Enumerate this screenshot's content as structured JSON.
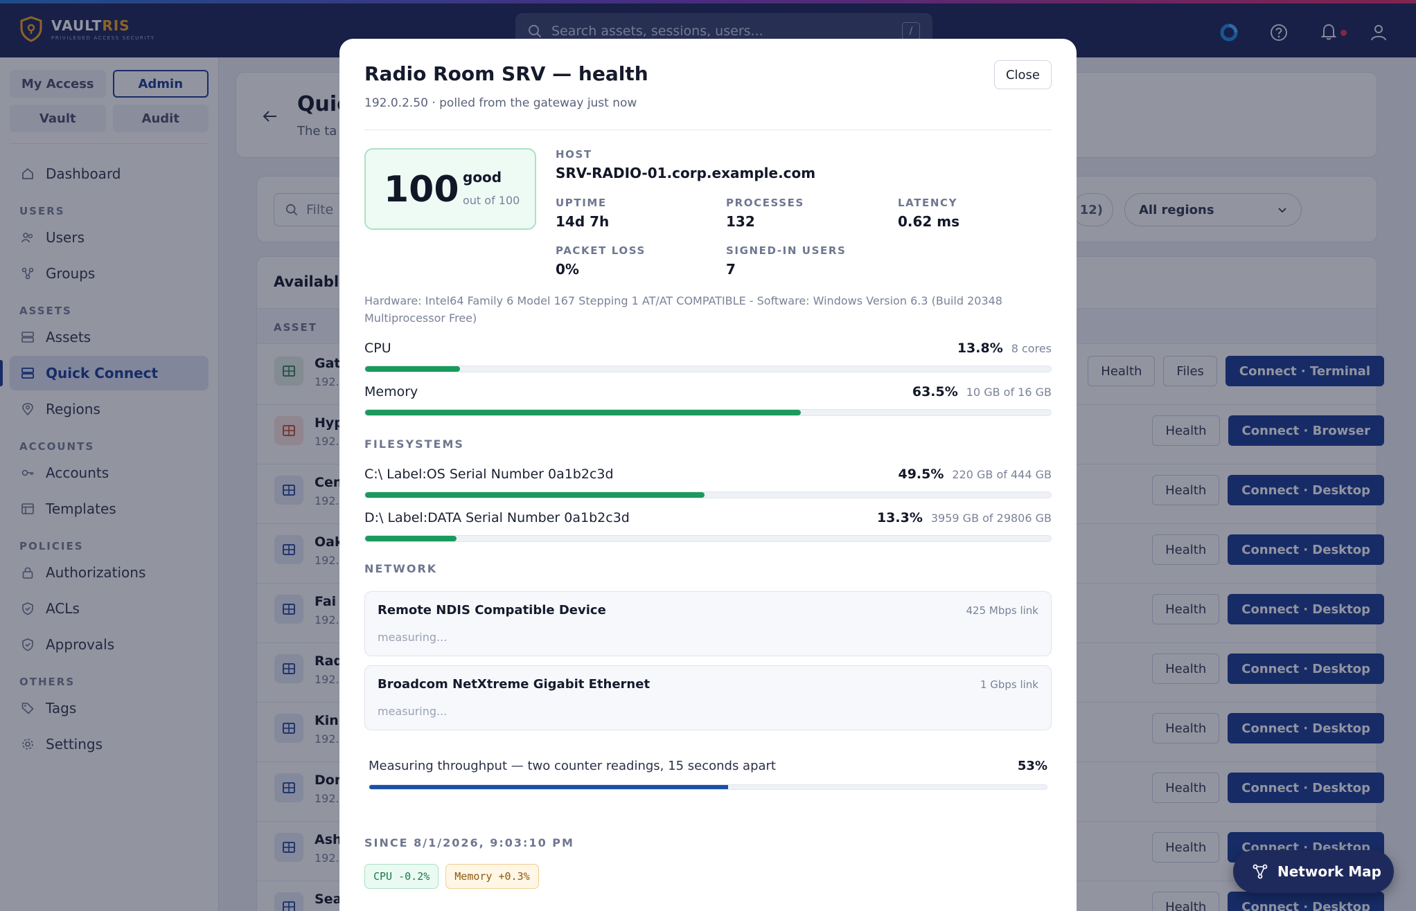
{
  "brand": {
    "name_a": "VAULT",
    "name_b": "RIS",
    "tagline": "PRIVILEGED ACCESS SECURITY"
  },
  "search": {
    "placeholder": "Search assets, sessions, users...",
    "shortcut": "/"
  },
  "sidebar": {
    "tabs": [
      {
        "label": "My Access",
        "active": false
      },
      {
        "label": "Admin",
        "active": true
      },
      {
        "label": "Vault",
        "active": false
      },
      {
        "label": "Audit",
        "active": false
      }
    ],
    "dashboard": "Dashboard",
    "sections": {
      "users": "USERS",
      "assets": "ASSETS",
      "accounts": "ACCOUNTS",
      "policies": "POLICIES",
      "others": "OTHERS"
    },
    "items": {
      "users": "Users",
      "groups": "Groups",
      "assets": "Assets",
      "quick_connect": "Quick Connect",
      "regions": "Regions",
      "accounts": "Accounts",
      "templates": "Templates",
      "authorizations": "Authorizations",
      "acls": "ACLs",
      "approvals": "Approvals",
      "tags": "Tags",
      "settings": "Settings"
    }
  },
  "main": {
    "title_fragment": "Quic",
    "subtitle_fragment": "The ta",
    "filter_fragment": "Filte",
    "count_fragment": "12)",
    "region_select": "All regions",
    "available_fragment": "Availabl",
    "asset_col": "ASSET",
    "rows": [
      {
        "name": "Gat",
        "ip": "192.",
        "actions": [
          "Health",
          "Files"
        ],
        "connect": "Connect · Terminal"
      },
      {
        "name": "Hyp",
        "ip": "192.",
        "actions": [
          "Health"
        ],
        "connect": "Connect · Browser"
      },
      {
        "name": "Cen",
        "ip": "192.",
        "actions": [
          "Health"
        ],
        "connect": "Connect · Desktop"
      },
      {
        "name": "Oak",
        "ip": "192.",
        "actions": [
          "Health"
        ],
        "connect": "Connect · Desktop"
      },
      {
        "name": "Fai",
        "ip": "192.",
        "actions": [
          "Health"
        ],
        "connect": "Connect · Desktop"
      },
      {
        "name": "Rad",
        "ip": "192.",
        "actions": [
          "Health"
        ],
        "connect": "Connect · Desktop"
      },
      {
        "name": "Kin",
        "ip": "192.",
        "actions": [
          "Health"
        ],
        "connect": "Connect · Desktop"
      },
      {
        "name": "Dor",
        "ip": "192.",
        "actions": [
          "Health"
        ],
        "connect": "Connect · Desktop"
      },
      {
        "name": "Ash",
        "ip": "192.",
        "actions": [
          "Health"
        ],
        "connect": "Connect · Desktop"
      },
      {
        "name": "Sea",
        "ip": "",
        "actions": [
          "Health"
        ],
        "connect": "Connect · Desktop"
      }
    ]
  },
  "modal": {
    "title": "Radio Room SRV — health",
    "subtitle": "192.0.2.50 · polled from the gateway just now",
    "close": "Close",
    "score": {
      "value": "100",
      "word": "good",
      "of": "out of 100"
    },
    "host_label": "HOST",
    "host": "SRV-RADIO-01.corp.example.com",
    "stats": [
      {
        "label": "UPTIME",
        "value": "14d 7h"
      },
      {
        "label": "PROCESSES",
        "value": "132"
      },
      {
        "label": "LATENCY",
        "value": "0.62 ms"
      },
      {
        "label": "PACKET LOSS",
        "value": "0%"
      },
      {
        "label": "SIGNED-IN USERS",
        "value": "7"
      }
    ],
    "hardware": "Hardware: Intel64 Family 6 Model 167 Stepping 1 AT/AT COMPATIBLE - Software: Windows Version 6.3 (Build 20348 Multiprocessor Free)",
    "cpu": {
      "name": "CPU",
      "pct": "13.8%",
      "detail": "8 cores",
      "fraction": 0.138
    },
    "memory": {
      "name": "Memory",
      "pct": "63.5%",
      "detail": "10 GB of 16 GB",
      "fraction": 0.635
    },
    "filesystems_label": "FILESYSTEMS",
    "filesystems": [
      {
        "name": "C:\\ Label:OS Serial Number 0a1b2c3d",
        "pct": "49.5%",
        "detail": "220 GB of 444 GB",
        "fraction": 0.495
      },
      {
        "name": "D:\\ Label:DATA Serial Number 0a1b2c3d",
        "pct": "13.3%",
        "detail": "3959 GB of 29806 GB",
        "fraction": 0.133
      }
    ],
    "network_label": "NETWORK",
    "nics": [
      {
        "name": "Remote NDIS Compatible Device",
        "link": "425 Mbps link",
        "status": "measuring..."
      },
      {
        "name": "Broadcom NetXtreme Gigabit Ethernet",
        "link": "1 Gbps link",
        "status": "measuring..."
      }
    ],
    "throughput": {
      "text": "Measuring throughput — two counter readings, 15 seconds apart",
      "pct": "53%",
      "fraction": 0.53
    },
    "since_label": "SINCE 8/1/2026, 9:03:10 PM",
    "chips": {
      "cpu": "CPU -0.2%",
      "memory": "Memory +0.3%"
    }
  },
  "network_map": "Network Map",
  "colors": {
    "accent": "#1c3f94",
    "good": "#1a9a5c",
    "topbar": "#1f2a5c"
  }
}
